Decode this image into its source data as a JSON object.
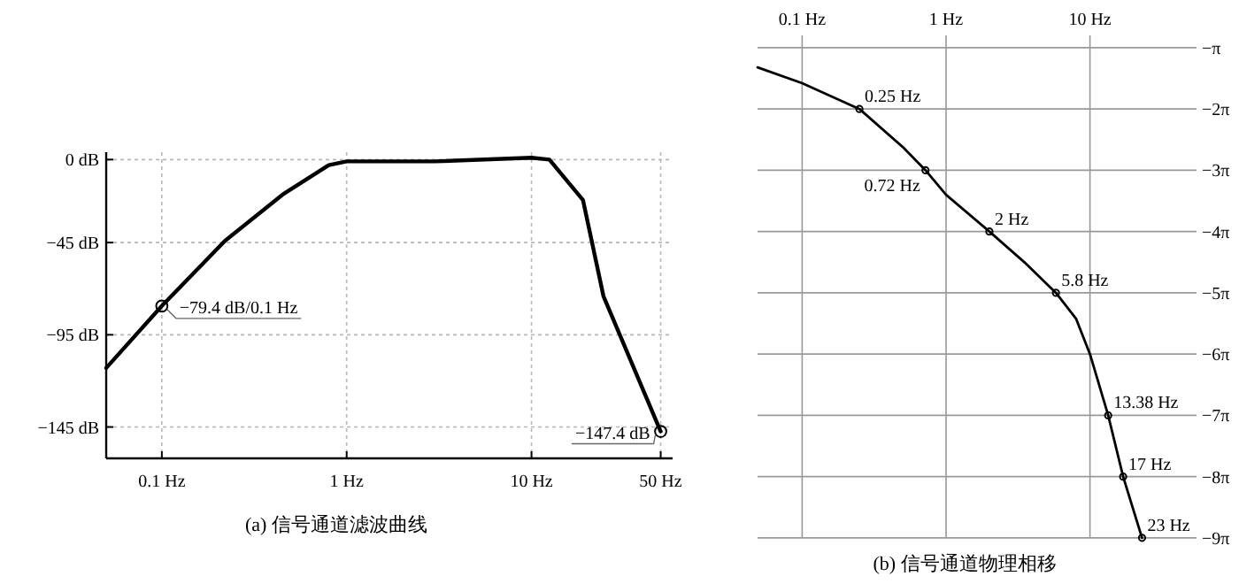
{
  "chart_data": [
    {
      "type": "line",
      "title": "(a) 信号通道滤波曲线",
      "log": "x",
      "grid": true,
      "color": "#000000",
      "x": [
        0.05,
        0.1,
        0.22,
        0.45,
        0.8,
        1,
        3,
        10,
        12.5,
        19,
        24.5,
        50
      ],
      "values": [
        -113,
        -79.4,
        -44,
        -19,
        -3,
        -1,
        -1,
        1,
        0,
        -22,
        -74,
        -147.4
      ],
      "xlim": [
        0.05,
        58
      ],
      "ylim": [
        -162,
        4
      ],
      "xticks": [
        {
          "value": 0.1,
          "label": "0.1 Hz"
        },
        {
          "value": 1,
          "label": "1 Hz"
        },
        {
          "value": 10,
          "label": "10 Hz"
        },
        {
          "value": 50,
          "label": "50 Hz"
        }
      ],
      "yticks": [
        {
          "value": 0,
          "label": "0 dB"
        },
        {
          "value": -45,
          "label": "−45 dB"
        },
        {
          "value": -95,
          "label": "−95 dB"
        },
        {
          "value": -145,
          "label": "−145 dB"
        }
      ],
      "annotations": [
        {
          "text": "−79.4 dB/0.1 Hz",
          "x": 0.1,
          "y": -79.4
        },
        {
          "text": "−147.4 dB",
          "x": 50,
          "y": -147.4
        }
      ]
    },
    {
      "type": "line",
      "title": "(b) 信号通道物理相移",
      "log": "x",
      "grid": true,
      "color": "#000000",
      "x": [
        0.049,
        0.1,
        0.25,
        0.5,
        0.72,
        1,
        2,
        3.5,
        5.8,
        8,
        10,
        13.38,
        17,
        23
      ],
      "values": [
        -4.15,
        -4.96,
        -6.283,
        -8.23,
        -9.425,
        -10.68,
        -12.566,
        -14.14,
        -15.708,
        -17.03,
        -18.85,
        -21.991,
        -25.133,
        -28.274
      ],
      "xlim": [
        0.049,
        55
      ],
      "ylim": [
        -28.28,
        -2.51
      ],
      "xticks": [
        {
          "value": 0.1,
          "label": "0.1 Hz"
        },
        {
          "value": 1,
          "label": "1 Hz"
        },
        {
          "value": 10,
          "label": "10 Hz"
        }
      ],
      "yticks": [
        {
          "value": -3.1416,
          "label": "−π"
        },
        {
          "value": -6.2832,
          "label": "−2π"
        },
        {
          "value": -9.4248,
          "label": "−3π"
        },
        {
          "value": -12.5664,
          "label": "−4π"
        },
        {
          "value": -15.708,
          "label": "−5π"
        },
        {
          "value": -18.8496,
          "label": "−6π"
        },
        {
          "value": -21.9911,
          "label": "−7π"
        },
        {
          "value": -25.1327,
          "label": "−8π"
        },
        {
          "value": -28.2743,
          "label": "−9π"
        }
      ],
      "annotations": [
        {
          "text": "0.25 Hz",
          "x": 0.25,
          "y": -6.283
        },
        {
          "text": "0.72 Hz",
          "x": 0.72,
          "y": -9.425
        },
        {
          "text": "2 Hz",
          "x": 2,
          "y": -12.566
        },
        {
          "text": "5.8 Hz",
          "x": 5.8,
          "y": -15.708
        },
        {
          "text": "13.38 Hz",
          "x": 13.38,
          "y": -21.991
        },
        {
          "text": "17 Hz",
          "x": 17,
          "y": -25.133
        },
        {
          "text": "23 Hz",
          "x": 23,
          "y": -28.274
        }
      ]
    }
  ]
}
